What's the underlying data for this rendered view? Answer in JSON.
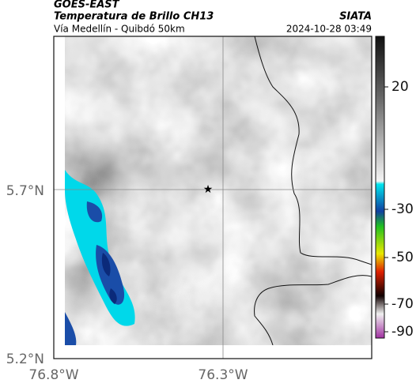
{
  "header": {
    "satellite": "GOES-EAST",
    "product": "Temperatura de Brillo CH13",
    "source": "SIATA",
    "route": "Vía Medellín - Quibdó 50km",
    "timestamp": "2024-10-28 03:49"
  },
  "map": {
    "lat_labels": [
      "5.7°N",
      "5.2°N"
    ],
    "lon_labels": [
      "76.8°W",
      "76.3°W"
    ]
  },
  "colorbar": {
    "ticks": [
      20,
      -30,
      -50,
      -70,
      -90
    ]
  }
}
